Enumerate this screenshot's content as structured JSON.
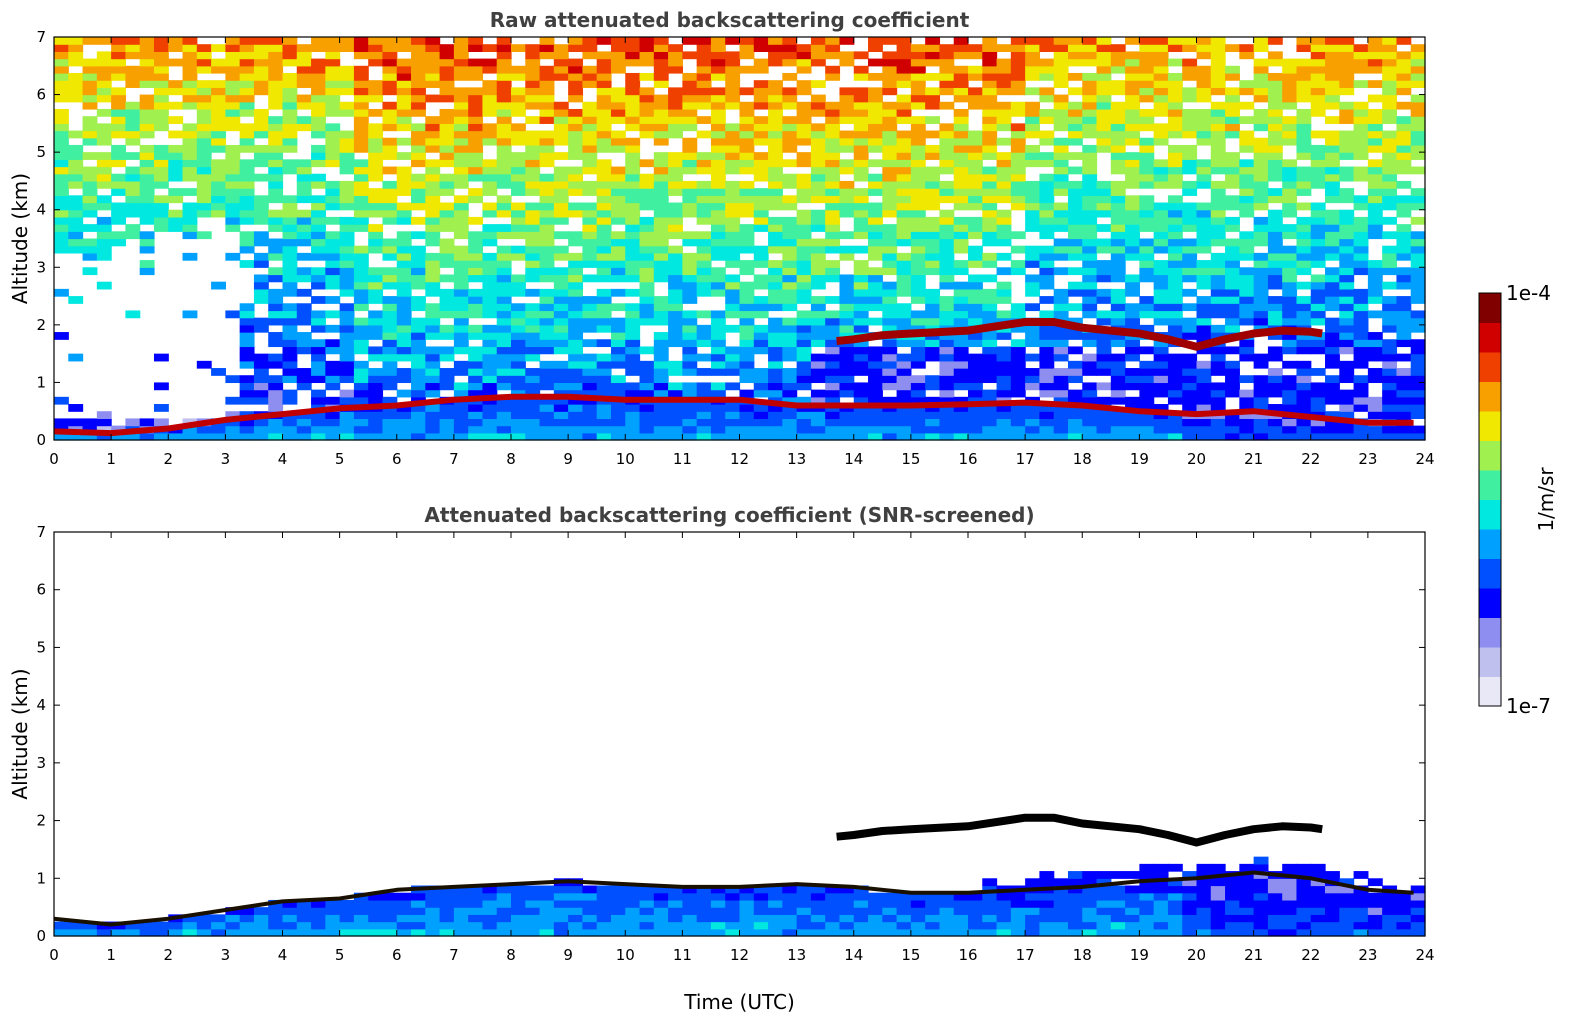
{
  "chart_data": [
    {
      "type": "heatmap",
      "title": "Raw attenuated backscattering coefficient",
      "xlabel": "",
      "ylabel": "Altitude (km)",
      "xlim": [
        0,
        24
      ],
      "ylim": [
        0,
        7
      ],
      "xticks": [
        0,
        1,
        2,
        3,
        4,
        5,
        6,
        7,
        8,
        9,
        10,
        11,
        12,
        13,
        14,
        15,
        16,
        17,
        18,
        19,
        20,
        21,
        22,
        23,
        24
      ],
      "yticks": [
        0,
        1,
        2,
        3,
        4,
        5,
        6,
        7
      ],
      "screened": false,
      "boundary_layer_top": {
        "x": [
          0,
          1,
          2,
          3,
          4,
          5,
          6,
          7,
          8,
          9,
          10,
          11,
          12,
          13,
          14,
          15,
          16,
          17,
          18,
          19,
          20,
          21,
          22,
          23,
          23.8
        ],
        "y": [
          0.15,
          0.12,
          0.2,
          0.35,
          0.45,
          0.55,
          0.6,
          0.7,
          0.75,
          0.75,
          0.7,
          0.7,
          0.7,
          0.6,
          0.6,
          0.6,
          0.62,
          0.65,
          0.6,
          0.5,
          0.45,
          0.5,
          0.4,
          0.3,
          0.3
        ]
      },
      "cloud_layer": {
        "x": [
          13.7,
          14.0,
          14.5,
          15,
          16,
          17,
          17.5,
          18,
          19,
          19.5,
          20,
          20.5,
          21,
          21.5,
          22,
          22.2
        ],
        "y": [
          1.72,
          1.75,
          1.82,
          1.85,
          1.9,
          2.05,
          2.05,
          1.95,
          1.85,
          1.75,
          1.62,
          1.75,
          1.85,
          1.9,
          1.88,
          1.85
        ]
      }
    },
    {
      "type": "heatmap",
      "title": "Attenuated backscattering coefficient (SNR-screened)",
      "xlabel": "Time (UTC)",
      "ylabel": "Altitude (km)",
      "xlim": [
        0,
        24
      ],
      "ylim": [
        0,
        7
      ],
      "xticks": [
        0,
        1,
        2,
        3,
        4,
        5,
        6,
        7,
        8,
        9,
        10,
        11,
        12,
        13,
        14,
        15,
        16,
        17,
        18,
        19,
        20,
        21,
        22,
        23,
        24
      ],
      "yticks": [
        0,
        1,
        2,
        3,
        4,
        5,
        6,
        7
      ],
      "screened": true,
      "boundary_layer_top": {
        "x": [
          0,
          1,
          2,
          3,
          4,
          5,
          6,
          7,
          8,
          9,
          10,
          11,
          12,
          13,
          14,
          15,
          16,
          17,
          18,
          19,
          20,
          21,
          22,
          23,
          23.8
        ],
        "y": [
          0.3,
          0.2,
          0.3,
          0.45,
          0.6,
          0.65,
          0.8,
          0.85,
          0.9,
          0.95,
          0.9,
          0.85,
          0.85,
          0.9,
          0.85,
          0.75,
          0.75,
          0.8,
          0.85,
          0.95,
          1.0,
          1.1,
          1.0,
          0.8,
          0.75
        ]
      },
      "cloud_layer": {
        "x": [
          13.7,
          14.0,
          14.5,
          15,
          16,
          17,
          17.5,
          18,
          19,
          19.5,
          20,
          20.5,
          21,
          21.5,
          22,
          22.2
        ],
        "y": [
          1.72,
          1.75,
          1.82,
          1.85,
          1.9,
          2.05,
          2.05,
          1.95,
          1.85,
          1.75,
          1.62,
          1.75,
          1.85,
          1.9,
          1.88,
          1.85
        ]
      }
    }
  ],
  "colorbar": {
    "label": "1/m/sr",
    "min_label": "1e-7",
    "max_label": "1e-4",
    "colormap": [
      "#e8e8f6",
      "#c0c0ee",
      "#8e8ef0",
      "#0000ff",
      "#0050ff",
      "#00a0ff",
      "#00e8e0",
      "#40f0a0",
      "#a0f050",
      "#f0e800",
      "#f8a000",
      "#f04000",
      "#d00000",
      "#800000"
    ]
  }
}
